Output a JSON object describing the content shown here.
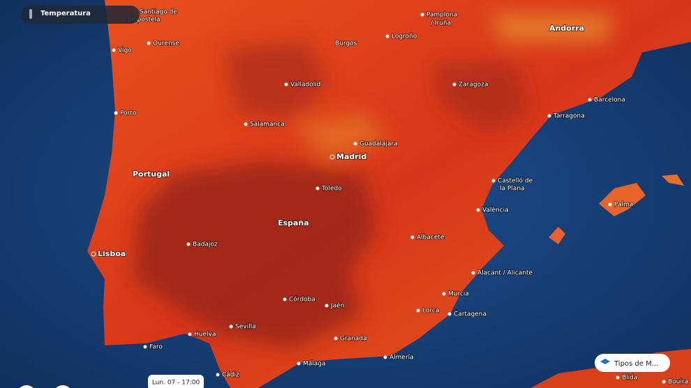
{
  "layer_pill": {
    "label": "Temperatura"
  },
  "labels": [
    "Santiago de",
    "Compostela",
    "Ourense",
    "Vigo",
    "Porto",
    "Pamplona",
    "/ Iruña",
    "Logroño",
    "Burgos",
    "Andorra",
    "Valladolid",
    "Zaragoza",
    "Barcelona",
    "Tarragona",
    "Salamanca",
    "Guadalajara",
    "Madrid",
    "Portugal",
    "Toledo",
    "Castelló de",
    "la Plana",
    "València",
    "Palma",
    "España",
    "Badajoz",
    "Lisboa",
    "Albacete",
    "Alacant / Alicante",
    "Córdoba",
    "Jaén",
    "Murcia",
    "Lorca",
    "Cartagena",
    "Sevilla",
    "Huelva",
    "Granada",
    "Faro",
    "Almería",
    "Málaga",
    "Cádiz",
    "Blida",
    "Bouira"
  ],
  "map_types_button": {
    "label": "Tipos de M..."
  },
  "time_label": "Lun. 07 - 17:00"
}
